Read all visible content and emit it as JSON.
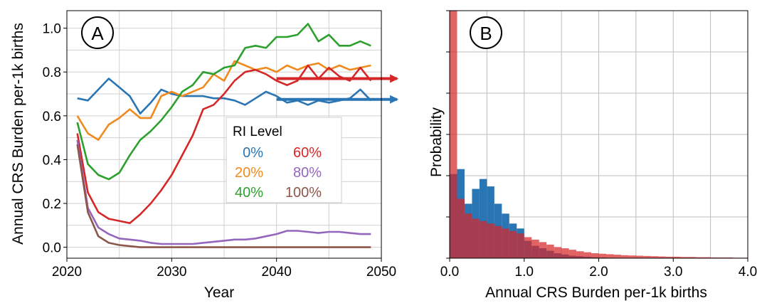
{
  "figure": {
    "panel_a": {
      "letter": "A",
      "ylabel": "Annual CRS Burden per-1k births",
      "xlabel": "Year"
    },
    "panel_b": {
      "letter": "B",
      "ylabel": "Probability",
      "xlabel": "Annual CRS Burden per-1k births"
    }
  },
  "chart_data": [
    {
      "type": "line",
      "panel": "A",
      "xlabel": "Year",
      "ylabel": "Annual CRS Burden per-1k births",
      "xlim": [
        2020,
        2050
      ],
      "ylim": [
        -0.05,
        1.08
      ],
      "xticks": [
        2020,
        2030,
        2040,
        2050
      ],
      "xtick_labels": [
        "2020",
        "2030",
        "2040",
        "2050"
      ],
      "yticks": [
        0.0,
        0.2,
        0.4,
        0.6,
        0.8,
        1.0
      ],
      "ytick_labels": [
        "0.0",
        "0.2",
        "0.4",
        "0.6",
        "0.8",
        "1.0"
      ],
      "grid": true,
      "legend": {
        "title": "RI Level",
        "placement": "center-right"
      },
      "x": [
        2021,
        2022,
        2023,
        2024,
        2025,
        2026,
        2027,
        2028,
        2029,
        2030,
        2031,
        2032,
        2033,
        2034,
        2035,
        2036,
        2037,
        2038,
        2039,
        2040,
        2041,
        2042,
        2043,
        2044,
        2045,
        2046,
        2047,
        2048,
        2049
      ],
      "series": [
        {
          "name": "0%",
          "color": "#2a75b3",
          "values": [
            0.68,
            0.67,
            0.72,
            0.77,
            0.73,
            0.69,
            0.61,
            0.66,
            0.72,
            0.7,
            0.69,
            0.69,
            0.69,
            0.68,
            0.68,
            0.67,
            0.65,
            0.68,
            0.71,
            0.69,
            0.66,
            0.67,
            0.65,
            0.67,
            0.66,
            0.67,
            0.68,
            0.72,
            0.67
          ]
        },
        {
          "name": "20%",
          "color": "#f08a1e",
          "values": [
            0.6,
            0.52,
            0.49,
            0.56,
            0.59,
            0.63,
            0.59,
            0.59,
            0.69,
            0.71,
            0.69,
            0.71,
            0.73,
            0.79,
            0.76,
            0.85,
            0.83,
            0.81,
            0.82,
            0.8,
            0.83,
            0.81,
            0.83,
            0.84,
            0.81,
            0.83,
            0.81,
            0.82,
            0.83
          ]
        },
        {
          "name": "40%",
          "color": "#2ca02c",
          "values": [
            0.57,
            0.38,
            0.33,
            0.31,
            0.34,
            0.42,
            0.49,
            0.53,
            0.58,
            0.64,
            0.71,
            0.74,
            0.8,
            0.79,
            0.82,
            0.83,
            0.91,
            0.92,
            0.91,
            0.96,
            0.96,
            0.97,
            1.02,
            0.94,
            0.97,
            0.92,
            0.92,
            0.94,
            0.92
          ]
        },
        {
          "name": "60%",
          "color": "#d62728",
          "values": [
            0.52,
            0.25,
            0.16,
            0.13,
            0.12,
            0.11,
            0.15,
            0.2,
            0.26,
            0.33,
            0.42,
            0.51,
            0.63,
            0.65,
            0.7,
            0.76,
            0.8,
            0.81,
            0.79,
            0.76,
            0.74,
            0.76,
            0.83,
            0.77,
            0.82,
            0.78,
            0.76,
            0.82,
            0.76
          ]
        },
        {
          "name": "80%",
          "color": "#9467bd",
          "values": [
            0.49,
            0.18,
            0.09,
            0.06,
            0.04,
            0.035,
            0.03,
            0.02,
            0.015,
            0.015,
            0.015,
            0.015,
            0.02,
            0.025,
            0.03,
            0.035,
            0.035,
            0.04,
            0.05,
            0.06,
            0.075,
            0.075,
            0.07,
            0.065,
            0.07,
            0.07,
            0.065,
            0.06,
            0.06
          ]
        },
        {
          "name": "100%",
          "color": "#8c564b",
          "values": [
            0.47,
            0.16,
            0.05,
            0.02,
            0.01,
            0.005,
            0.0,
            0.0,
            0.0,
            0.0,
            0.0,
            0.0,
            0.0,
            0.0,
            0.0,
            0.0,
            0.0,
            0.0,
            0.0,
            0.0,
            0.0,
            0.0,
            0.0,
            0.0,
            0.0,
            0.0,
            0.0,
            0.0,
            0.0
          ]
        }
      ],
      "annotations": [
        {
          "type": "arrow",
          "color": "#d62728",
          "y": 0.77,
          "x_from": 2040,
          "x_to": 2051.5
        },
        {
          "type": "arrow",
          "color": "#2a75b3",
          "y": 0.675,
          "x_from": 2040,
          "x_to": 2051.5
        }
      ]
    },
    {
      "type": "bar",
      "subtype": "histogram",
      "panel": "B",
      "xlabel": "Annual CRS Burden per-1k births",
      "ylabel": "Probability",
      "xlim": [
        0,
        4.0
      ],
      "xticks": [
        0.0,
        1.0,
        2.0,
        3.0,
        4.0
      ],
      "xtick_labels": [
        "0.0",
        "1.0",
        "2.0",
        "3.0",
        "4.0"
      ],
      "ylim": [
        0,
        1.0
      ],
      "grid": true,
      "bin_width": 0.1,
      "series": [
        {
          "name": "0%",
          "color": "#2a75b3",
          "values": [
            0.34,
            0.36,
            0.22,
            0.28,
            0.32,
            0.29,
            0.22,
            0.18,
            0.14,
            0.12,
            0.07,
            0.05,
            0.04,
            0.03,
            0.02,
            0.015,
            0.01,
            0.008,
            0.006,
            0.004,
            0.003,
            0.002,
            0.001,
            0.001
          ]
        },
        {
          "name": "60%",
          "color": "#d62728",
          "values": [
            1.0,
            0.24,
            0.18,
            0.16,
            0.15,
            0.14,
            0.13,
            0.12,
            0.11,
            0.1,
            0.085,
            0.075,
            0.065,
            0.055,
            0.045,
            0.04,
            0.034,
            0.028,
            0.024,
            0.02,
            0.018,
            0.016,
            0.014,
            0.012,
            0.011,
            0.01,
            0.009,
            0.008,
            0.007,
            0.006,
            0.006,
            0.005,
            0.005,
            0.004,
            0.004,
            0.003,
            0.003,
            0.003,
            0.002,
            0.002
          ]
        }
      ]
    }
  ]
}
